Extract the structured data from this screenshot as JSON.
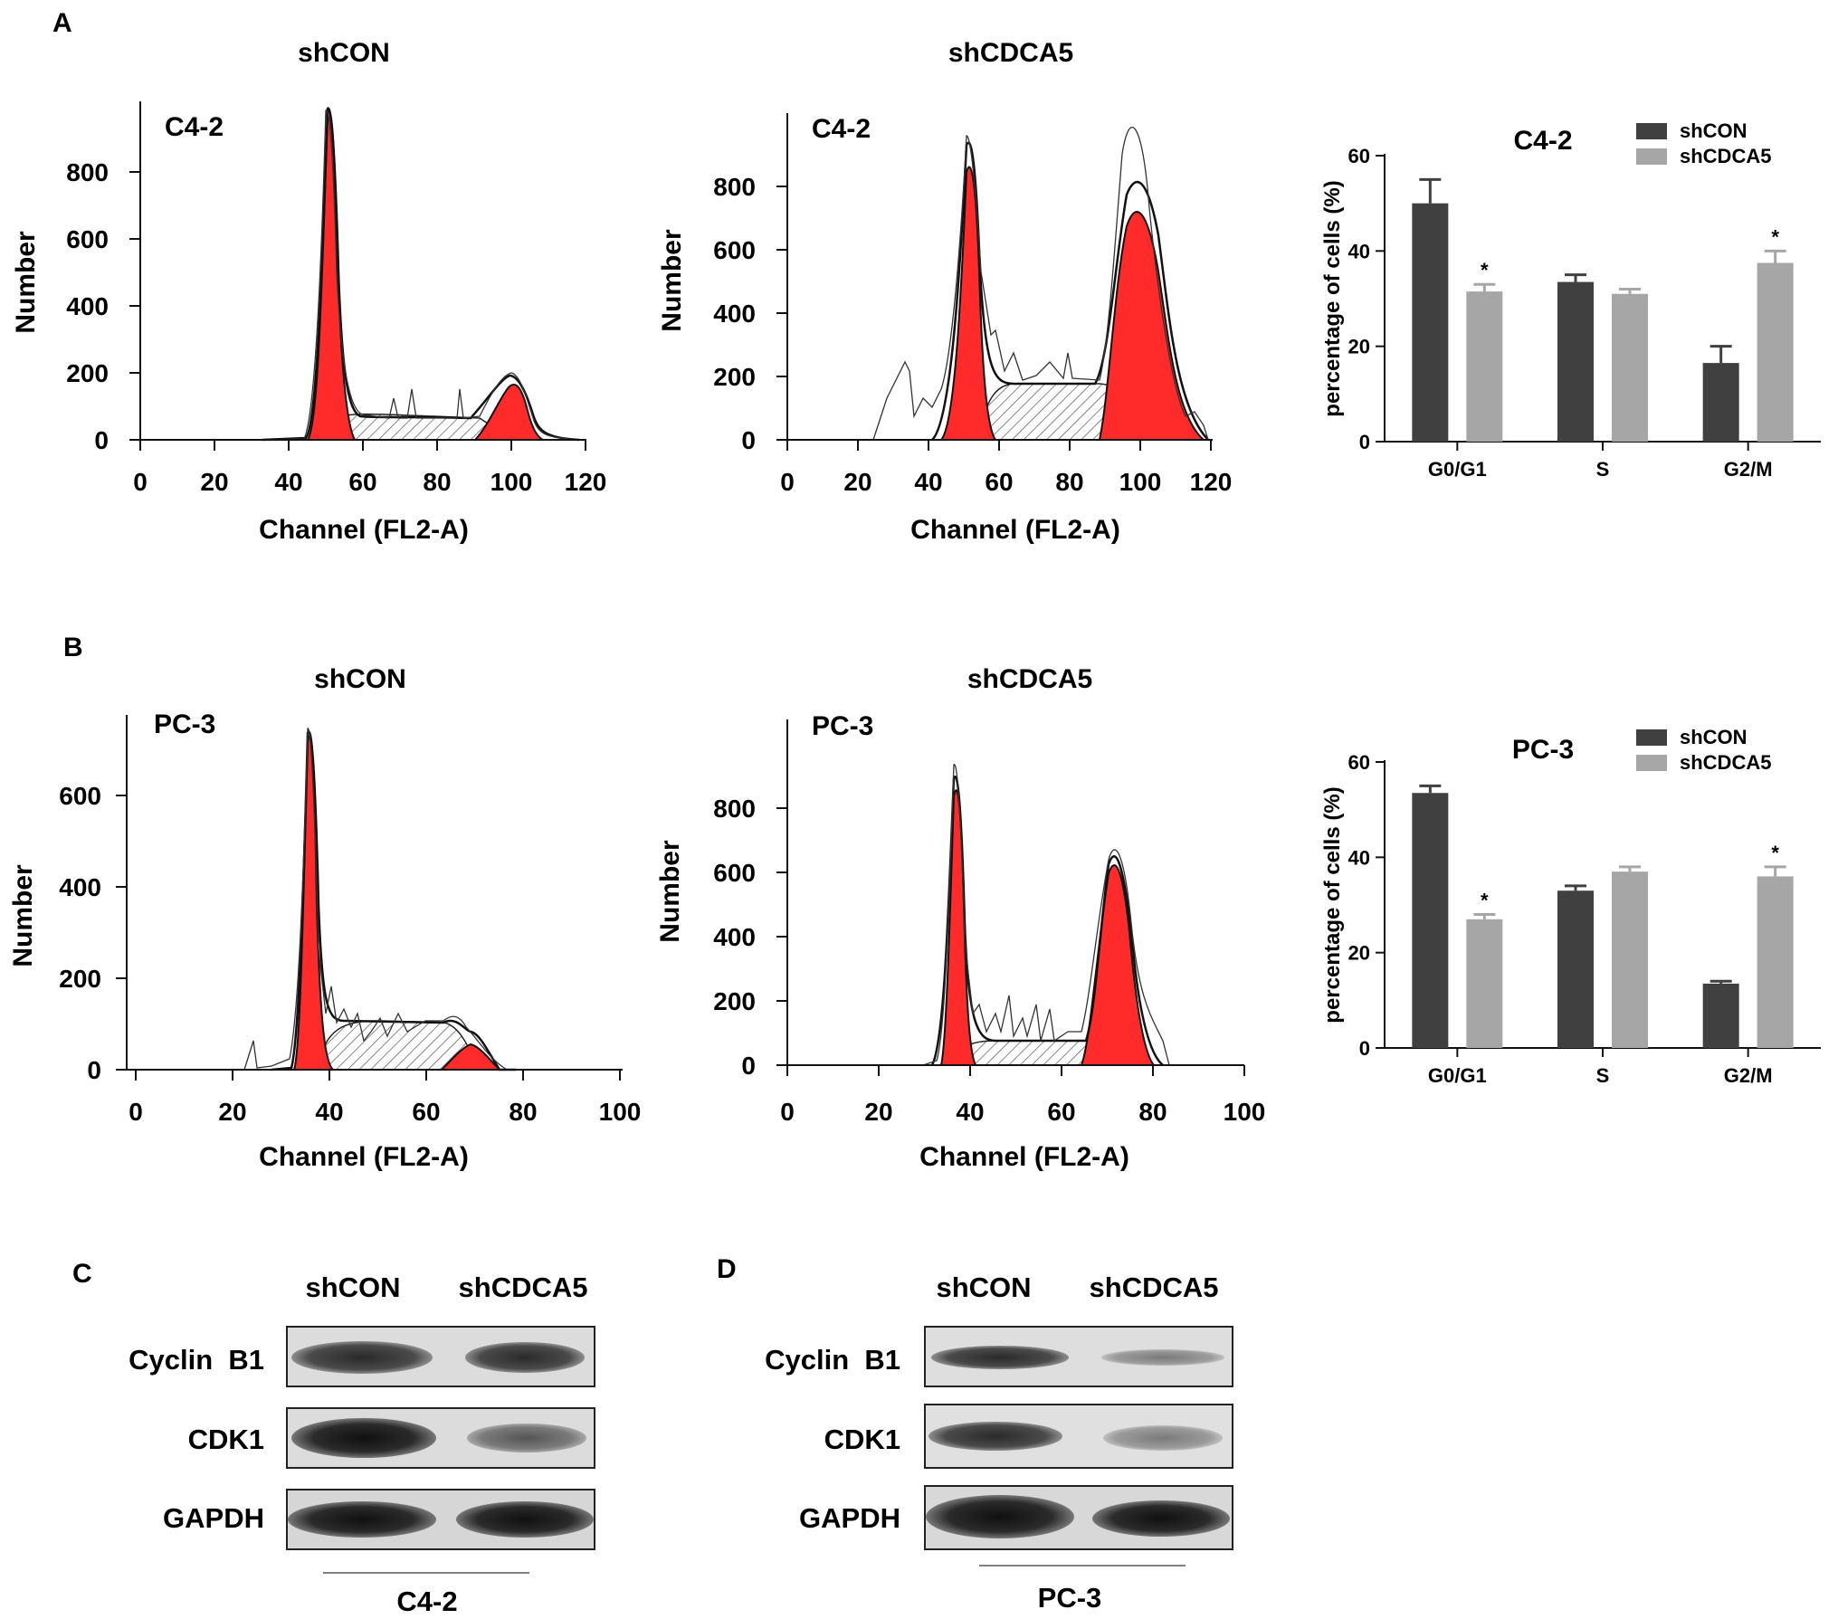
{
  "panel_labels": {
    "a": "A",
    "b": "B",
    "c": "C",
    "d": "D"
  },
  "flow_panels": [
    {
      "id": "a_shcon",
      "title": "shCON",
      "cell": "C4-2",
      "ylabel": "Number",
      "xlabel": "Channel (FL2-A)",
      "xticks": [
        "0",
        "20",
        "40",
        "60",
        "80",
        "100",
        "120"
      ],
      "yticks": [
        "0",
        "200",
        "400",
        "600",
        "800"
      ]
    },
    {
      "id": "a_shcdca5",
      "title": "shCDCA5",
      "cell": "C4-2",
      "ylabel": "Number",
      "xlabel": "Channel (FL2-A)",
      "xticks": [
        "0",
        "20",
        "40",
        "60",
        "80",
        "100",
        "120"
      ],
      "yticks": [
        "0",
        "200",
        "400",
        "600",
        "800"
      ]
    },
    {
      "id": "b_shcon",
      "title": "shCON",
      "cell": "PC-3",
      "ylabel": "Number",
      "xlabel": "Channel (FL2-A)",
      "xticks": [
        "0",
        "20",
        "40",
        "60",
        "80",
        "100"
      ],
      "yticks": [
        "0",
        "200",
        "400",
        "600"
      ]
    },
    {
      "id": "b_shcdca5",
      "title": "shCDCA5",
      "cell": "PC-3",
      "ylabel": "Number",
      "xlabel": "Channel (FL2-A)",
      "xticks": [
        "0",
        "20",
        "40",
        "60",
        "80",
        "100"
      ],
      "yticks": [
        "0",
        "200",
        "400",
        "600",
        "800"
      ]
    }
  ],
  "colors": {
    "peak_fill": "#ff2a2a",
    "shcon_bar": "#404040",
    "shcdca5_bar": "#a6a6a6",
    "axis": "#111111"
  },
  "chart_data": [
    {
      "type": "bar",
      "title": "C4-2",
      "ylabel": "percentage of cells (%)",
      "ylim": [
        0,
        60
      ],
      "yticks": [
        "0",
        "20",
        "40",
        "60"
      ],
      "categories": [
        "G0/G1",
        "S",
        "G2/M"
      ],
      "legend_position": "top-right",
      "series": [
        {
          "name": "shCON",
          "values": [
            50,
            33.5,
            16.5
          ],
          "errors": [
            5,
            1.5,
            3.5
          ]
        },
        {
          "name": "shCDCA5",
          "values": [
            31.5,
            31,
            37.5
          ],
          "errors": [
            1.5,
            1,
            2.5
          ]
        }
      ],
      "significance": [
        {
          "category": "G0/G1",
          "series": "shCDCA5",
          "mark": "*"
        },
        {
          "category": "G2/M",
          "series": "shCDCA5",
          "mark": "*"
        }
      ]
    },
    {
      "type": "bar",
      "title": "PC-3",
      "ylabel": "percentage of cells (%)",
      "ylim": [
        0,
        60
      ],
      "yticks": [
        "0",
        "20",
        "40",
        "60"
      ],
      "categories": [
        "G0/G1",
        "S",
        "G2/M"
      ],
      "legend_position": "top-right",
      "series": [
        {
          "name": "shCON",
          "values": [
            53.5,
            33,
            13.5
          ],
          "errors": [
            1.5,
            1,
            0.5
          ]
        },
        {
          "name": "shCDCA5",
          "values": [
            27,
            37,
            36
          ],
          "errors": [
            1,
            1,
            2
          ]
        }
      ],
      "significance": [
        {
          "category": "G0/G1",
          "series": "shCDCA5",
          "mark": "*"
        },
        {
          "category": "G2/M",
          "series": "shCDCA5",
          "mark": "*"
        }
      ]
    }
  ],
  "western_blots": [
    {
      "id": "c",
      "lanes": [
        "shCON",
        "shCDCA5"
      ],
      "proteins": [
        "Cyclin  B1",
        "CDK1",
        "GAPDH"
      ],
      "cell_line": "C4-2"
    },
    {
      "id": "d",
      "lanes": [
        "shCON",
        "shCDCA5"
      ],
      "proteins": [
        "Cyclin  B1",
        "CDK1",
        "GAPDH"
      ],
      "cell_line": "PC-3"
    }
  ]
}
